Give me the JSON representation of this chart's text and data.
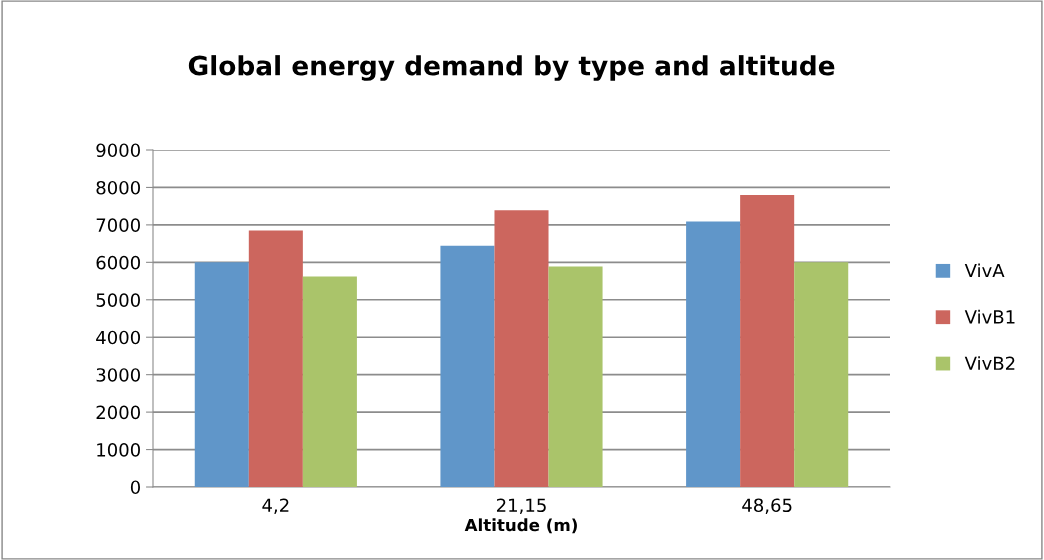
{
  "chart_data": {
    "type": "bar",
    "title": "Global energy demand by type and altitude",
    "xlabel": "Altitude (m)",
    "categories": [
      "4,2",
      "21,15",
      "48,65"
    ],
    "series": [
      {
        "name": "VivA",
        "color": "#6096c9",
        "values": [
          6000,
          6440,
          7090
        ]
      },
      {
        "name": "VivB1",
        "color": "#cc665e",
        "values": [
          6850,
          7390,
          7800
        ]
      },
      {
        "name": "VivB2",
        "color": "#aac46a",
        "values": [
          5620,
          5890,
          6000
        ]
      }
    ],
    "ylim": [
      0,
      9000
    ],
    "yticks": [
      0,
      1000,
      2000,
      3000,
      4000,
      5000,
      6000,
      7000,
      8000,
      9000
    ],
    "grid": "y",
    "legend": "right"
  }
}
